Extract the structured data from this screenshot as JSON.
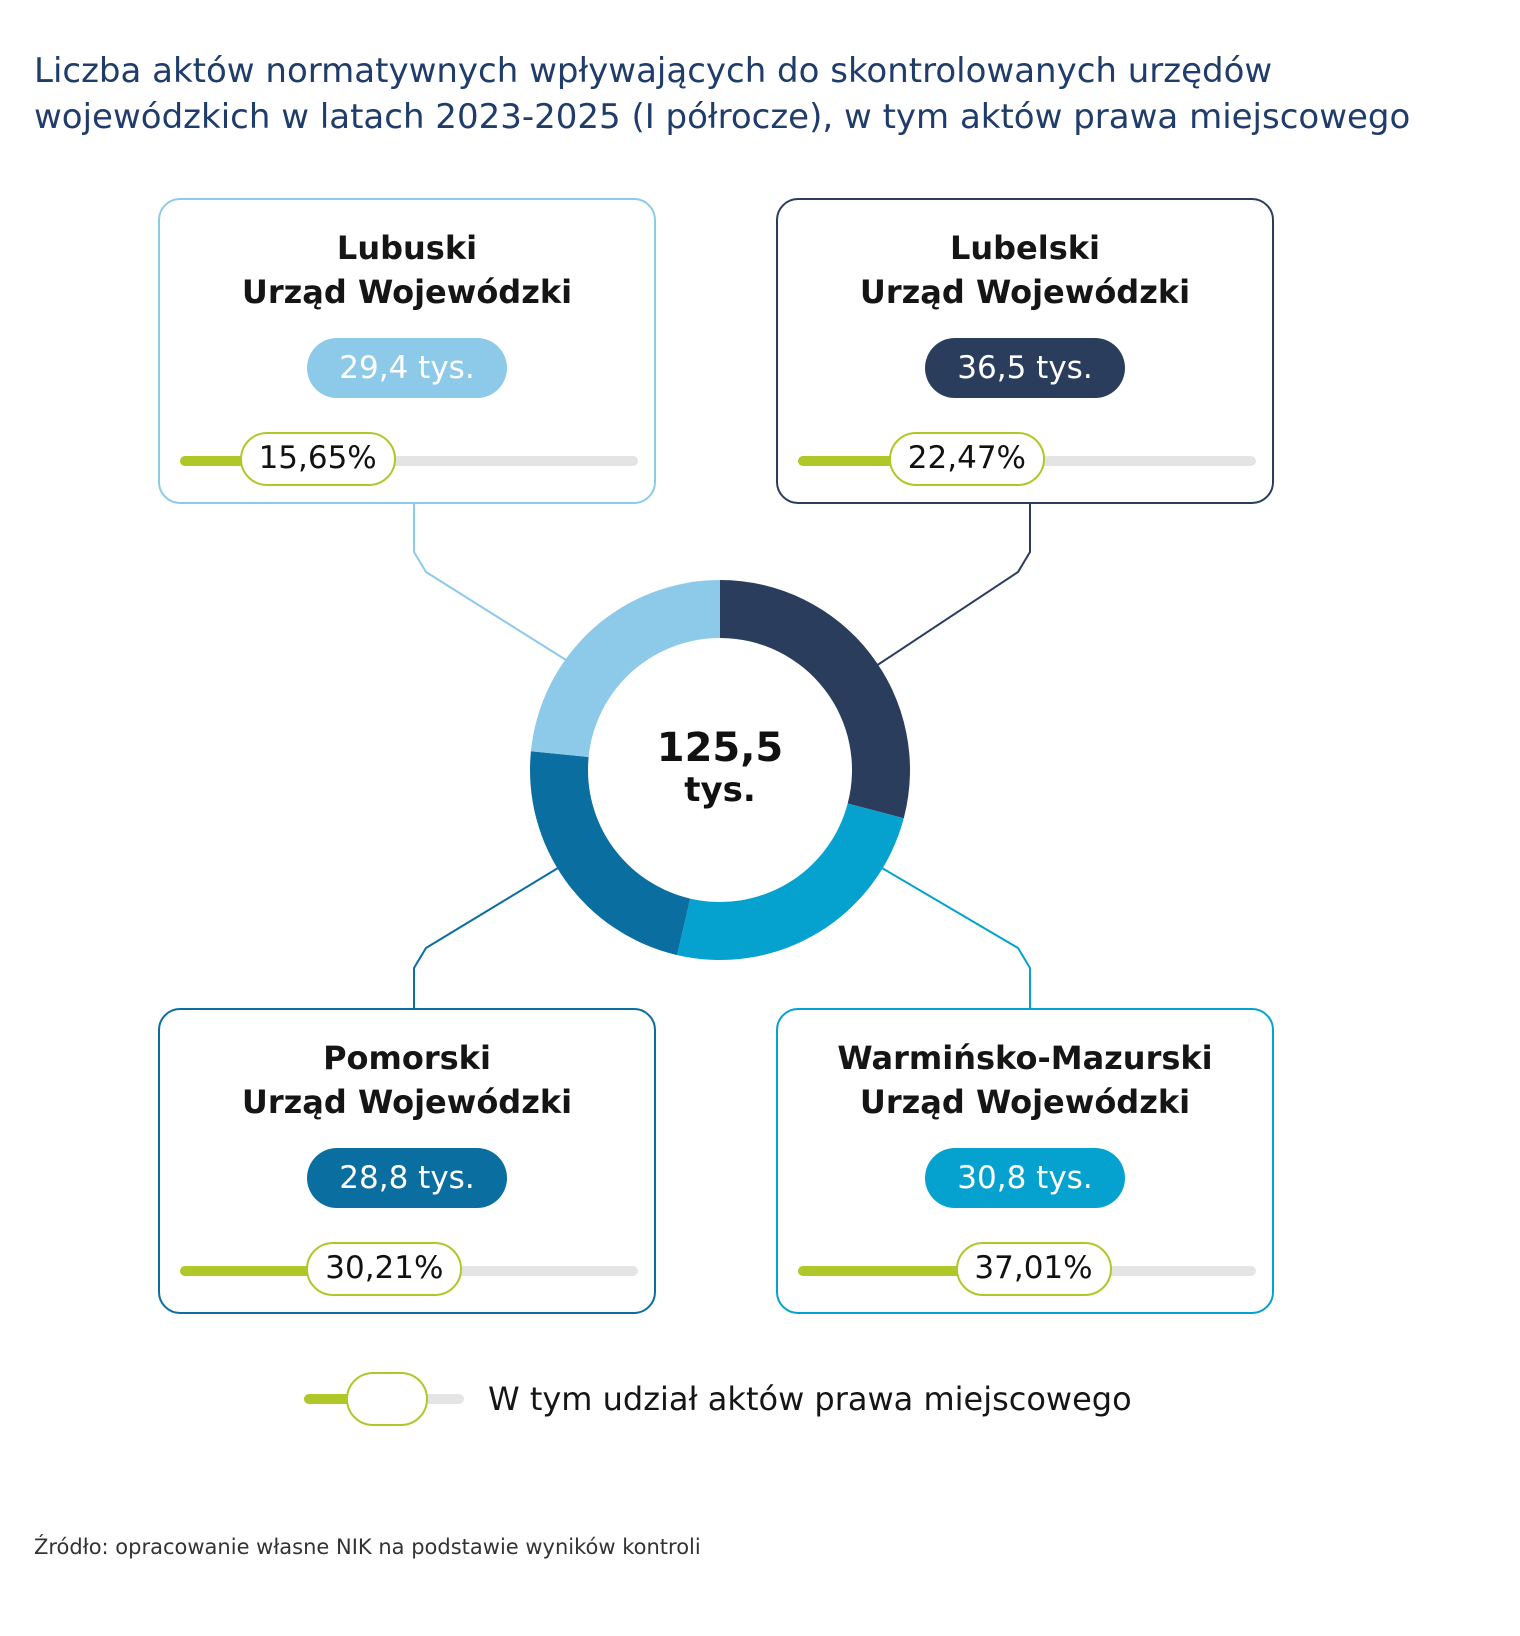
{
  "title": {
    "line1": "Liczba aktów normatywnych wpływających do skontrolowanych urzędów",
    "line2": "wojewódzkich w latach 2023-2025 (I półrocze), w tym aktów prawa miejscowego"
  },
  "chart_data": {
    "type": "pie",
    "title": "Liczba aktów normatywnych wpływających do skontrolowanych urzędów wojewódzkich w latach 2023-2025 (I półrocze), w tym aktów prawa miejscowego",
    "center_label": {
      "value": "125,5",
      "unit": "tys."
    },
    "total": 125.5,
    "slices": [
      {
        "name_line1": "Lubelski",
        "name_line2": "Urząd Wojewódzki",
        "value": 36.5,
        "value_label": "36,5 tys.",
        "local_law_share": 22.47,
        "share_label": "22,47%",
        "color": "#2b3d5c"
      },
      {
        "name_line1": "Warmińsko-Mazurski",
        "name_line2": "Urząd Wojewódzki",
        "value": 30.8,
        "value_label": "30,8 tys.",
        "local_law_share": 37.01,
        "share_label": "37,01%",
        "color": "#05a2d0"
      },
      {
        "name_line1": "Pomorski",
        "name_line2": "Urząd Wojewódzki",
        "value": 28.8,
        "value_label": "28,8 tys.",
        "local_law_share": 30.21,
        "share_label": "30,21%",
        "color": "#0b6ea1"
      },
      {
        "name_line1": "Lubuski",
        "name_line2": "Urząd Wojewódzki",
        "value": 29.4,
        "value_label": "29,4 tys.",
        "local_law_share": 15.65,
        "share_label": "15,65%",
        "color": "#8dcaea"
      }
    ],
    "legend": {
      "label": "W tym udział aktów prawa miejscowego",
      "placement": "bottom"
    }
  },
  "source": "Źródło: opracowanie własne NIK na podstawie wyników kontroli",
  "colors": {
    "title": "#1f3c6b",
    "progress_fill": "#b0c729",
    "progress_track": "#e4e4e4"
  }
}
